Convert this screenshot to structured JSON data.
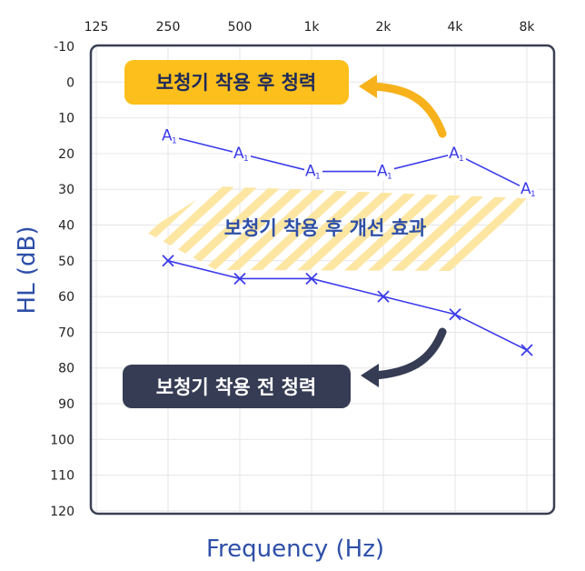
{
  "chart_data": {
    "type": "line",
    "x_categories": [
      "125",
      "250",
      "500",
      "1k",
      "2k",
      "4k",
      "8k"
    ],
    "ylim": [
      -10,
      120
    ],
    "y_ticks": [
      -10,
      0,
      10,
      20,
      30,
      40,
      50,
      60,
      70,
      80,
      90,
      100,
      110,
      120
    ],
    "y_inverted": true,
    "xlabel": "Frequency (Hz)",
    "ylabel": "HL (dB)",
    "grid": true,
    "series": [
      {
        "key": "aided",
        "marker": "A1",
        "color": "#3b3be8",
        "x": [
          "250",
          "500",
          "1k",
          "2k",
          "4k",
          "8k"
        ],
        "values": [
          15,
          20,
          25,
          25,
          20,
          30
        ]
      },
      {
        "key": "unaided",
        "marker": "x",
        "color": "#3b3be8",
        "x": [
          "250",
          "500",
          "1k",
          "2k",
          "4k",
          "8k"
        ],
        "values": [
          50,
          55,
          55,
          60,
          65,
          75
        ]
      }
    ],
    "annotations": {
      "aided_label": "보청기 착용 후 청력",
      "unaided_label": "보청기 착용 전 청력",
      "improvement_label": "보청기 착용 후 개선 효과"
    },
    "colors": {
      "frame": "#3a4054",
      "aided_pill": "#fdbf1c",
      "aided_arrow": "#f7b21b",
      "unaided_pill": "#363c54",
      "unaided_arrow": "#363c54",
      "hatch": "#fde6a2",
      "improvement_text": "#2e4fa8",
      "axis_title": "#2e4fa8",
      "gridline": "#e6e6e6"
    }
  }
}
